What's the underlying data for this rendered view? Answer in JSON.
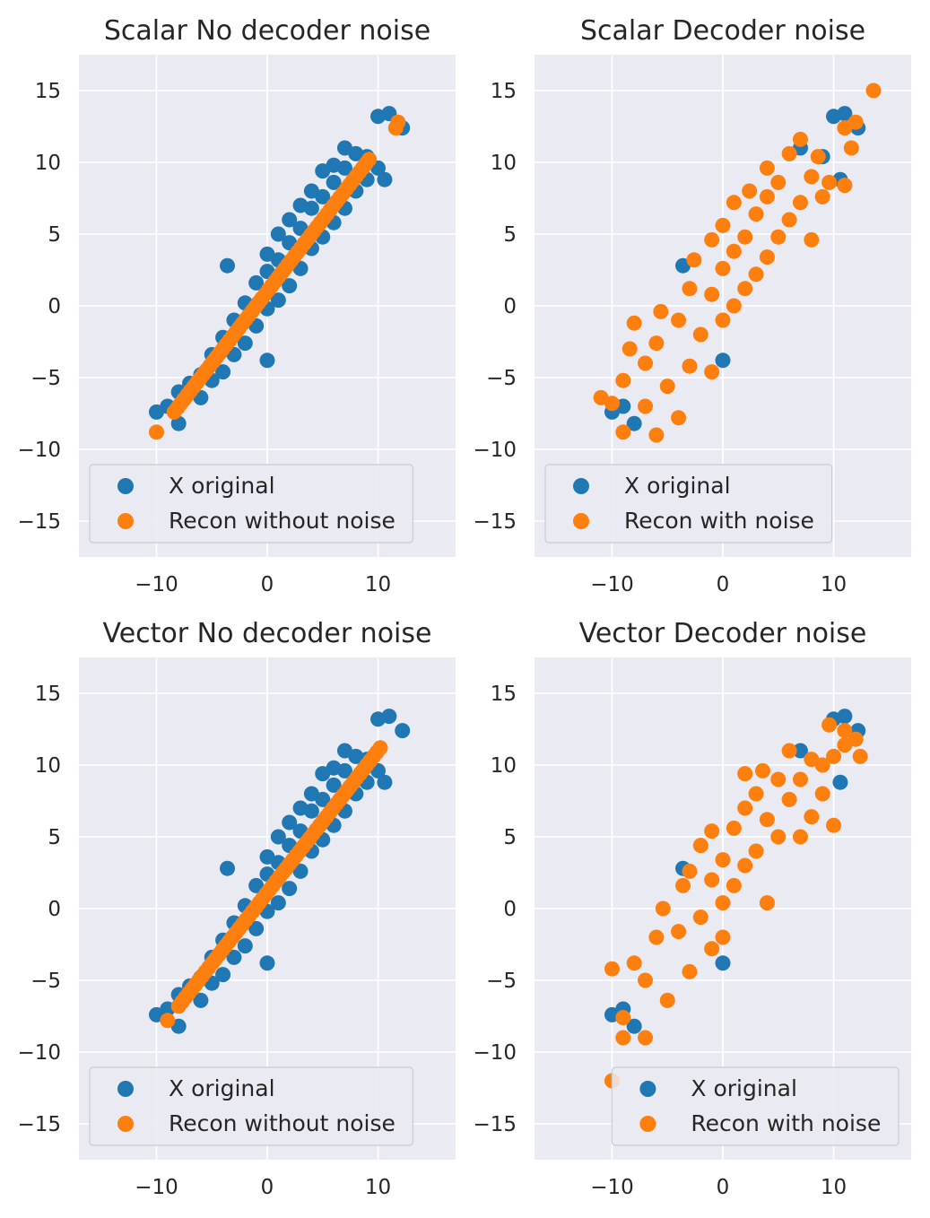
{
  "colors": {
    "x_original": "#1f77b4",
    "recon": "#ff7f0e",
    "panel_bg": "#eaeaf2"
  },
  "chart_data": [
    {
      "type": "scatter",
      "title": "Scalar No decoder noise",
      "xlim": [
        -17,
        17
      ],
      "ylim": [
        -17.5,
        17.5
      ],
      "xticks": [
        -10,
        0,
        10
      ],
      "yticks": [
        -15,
        -10,
        -5,
        0,
        5,
        10,
        15
      ],
      "xtick_labels": [
        "−10",
        "0",
        "10"
      ],
      "ytick_labels": [
        "−15",
        "−10",
        "−5",
        "0",
        "5",
        "10",
        "15"
      ],
      "grid": true,
      "legend_position": "lower-left",
      "series": [
        {
          "name": "X original",
          "color": "#1f77b4",
          "approx_sample": true,
          "points": [
            [
              -10,
              -7.4
            ],
            [
              -9,
              -7
            ],
            [
              -8,
              -8.2
            ],
            [
              -8,
              -6
            ],
            [
              -7,
              -5.4
            ],
            [
              -6,
              -6.4
            ],
            [
              -6,
              -4.8
            ],
            [
              -5,
              -5.2
            ],
            [
              -5,
              -3.4
            ],
            [
              -4,
              -4.6
            ],
            [
              -4,
              -2.2
            ],
            [
              -3.6,
              2.8
            ],
            [
              -3,
              -3.4
            ],
            [
              -3,
              -1
            ],
            [
              -2,
              -2.6
            ],
            [
              -2,
              0.2
            ],
            [
              -1,
              -1.4
            ],
            [
              -1,
              1.6
            ],
            [
              0,
              -0.2
            ],
            [
              0,
              -3.8
            ],
            [
              0,
              2.4
            ],
            [
              0,
              3.6
            ],
            [
              1,
              0.4
            ],
            [
              1,
              3.2
            ],
            [
              1,
              5
            ],
            [
              2,
              1.4
            ],
            [
              2,
              4.4
            ],
            [
              2,
              6
            ],
            [
              3,
              2.6
            ],
            [
              3,
              5.4
            ],
            [
              3,
              7
            ],
            [
              4,
              4
            ],
            [
              4,
              6.8
            ],
            [
              4,
              8
            ],
            [
              5,
              4.8
            ],
            [
              5,
              7.6
            ],
            [
              5,
              9.4
            ],
            [
              6,
              5.8
            ],
            [
              6,
              8.6
            ],
            [
              6,
              9.8
            ],
            [
              7,
              6.8
            ],
            [
              7,
              9.6
            ],
            [
              7,
              11
            ],
            [
              8,
              8
            ],
            [
              8,
              10.6
            ],
            [
              9,
              8.8
            ],
            [
              9,
              10.4
            ],
            [
              10,
              9.6
            ],
            [
              10.6,
              8.8
            ],
            [
              10,
              13.2
            ],
            [
              11,
              13.4
            ],
            [
              12.2,
              12.4
            ]
          ]
        },
        {
          "name": "Recon without noise",
          "color": "#ff7f0e",
          "line_from": [
            -8.4,
            -7.4
          ],
          "line_to": [
            9.2,
            10.2
          ],
          "points": [
            [
              -10,
              -8.8
            ],
            [
              11.6,
              12.4
            ],
            [
              11.8,
              12.8
            ]
          ]
        }
      ]
    },
    {
      "type": "scatter",
      "title": "Scalar Decoder noise",
      "xlim": [
        -17,
        17
      ],
      "ylim": [
        -17.5,
        17.5
      ],
      "xticks": [
        -10,
        0,
        10
      ],
      "yticks": [
        -15,
        -10,
        -5,
        0,
        5,
        10,
        15
      ],
      "xtick_labels": [
        "−10",
        "0",
        "10"
      ],
      "ytick_labels": [
        "−15",
        "−10",
        "−5",
        "0",
        "5",
        "10",
        "15"
      ],
      "grid": true,
      "legend_position": "lower-left",
      "series": [
        {
          "name": "X original",
          "color": "#1f77b4",
          "approx_sample": true,
          "points": [
            [
              -10,
              -7.4
            ],
            [
              -9,
              -7
            ],
            [
              -8,
              -8.2
            ],
            [
              -3.6,
              2.8
            ],
            [
              0,
              -3.8
            ],
            [
              10,
              13.2
            ],
            [
              11,
              13.4
            ],
            [
              12.2,
              12.4
            ],
            [
              10.6,
              8.8
            ],
            [
              7,
              11
            ],
            [
              9,
              10.4
            ]
          ]
        },
        {
          "name": "Recon with noise",
          "color": "#ff7f0e",
          "approx_sample": true,
          "points": [
            [
              -11,
              -6.4
            ],
            [
              -10,
              -6.8
            ],
            [
              -9,
              -8.8
            ],
            [
              -9,
              -5.2
            ],
            [
              -8.4,
              -3
            ],
            [
              -8,
              -1.2
            ],
            [
              -7,
              -7
            ],
            [
              -7,
              -4
            ],
            [
              -6,
              -9
            ],
            [
              -6,
              -2.6
            ],
            [
              -5.6,
              -0.4
            ],
            [
              -5,
              -5.6
            ],
            [
              -4,
              -7.8
            ],
            [
              -4,
              -1
            ],
            [
              -3,
              -4.2
            ],
            [
              -3,
              1.2
            ],
            [
              -2.6,
              3.2
            ],
            [
              -2,
              -2
            ],
            [
              -1,
              -4.6
            ],
            [
              -1,
              0.8
            ],
            [
              -1,
              4.6
            ],
            [
              0,
              -1
            ],
            [
              0,
              2.6
            ],
            [
              0,
              5.6
            ],
            [
              1,
              0
            ],
            [
              1,
              3.8
            ],
            [
              1,
              7.2
            ],
            [
              2,
              1.2
            ],
            [
              2,
              4.8
            ],
            [
              2.4,
              8
            ],
            [
              3,
              2.2
            ],
            [
              3,
              6.4
            ],
            [
              4,
              3.4
            ],
            [
              4,
              7.6
            ],
            [
              4,
              9.6
            ],
            [
              5,
              4.8
            ],
            [
              5,
              8.6
            ],
            [
              6,
              6
            ],
            [
              6,
              10.6
            ],
            [
              7,
              7.2
            ],
            [
              7,
              11.6
            ],
            [
              8,
              4.6
            ],
            [
              8,
              9
            ],
            [
              8.6,
              10.4
            ],
            [
              9,
              7.6
            ],
            [
              9.6,
              8.6
            ],
            [
              11,
              12.4
            ],
            [
              11.6,
              11
            ],
            [
              12,
              12.8
            ],
            [
              11,
              8.4
            ],
            [
              13.6,
              15
            ]
          ]
        }
      ]
    },
    {
      "type": "scatter",
      "title": "Vector No decoder noise",
      "xlim": [
        -17,
        17
      ],
      "ylim": [
        -17.5,
        17.5
      ],
      "xticks": [
        -10,
        0,
        10
      ],
      "yticks": [
        -15,
        -10,
        -5,
        0,
        5,
        10,
        15
      ],
      "xtick_labels": [
        "−10",
        "0",
        "10"
      ],
      "ytick_labels": [
        "−15",
        "−10",
        "−5",
        "0",
        "5",
        "10",
        "15"
      ],
      "grid": true,
      "legend_position": "lower-left",
      "series": [
        {
          "name": "X original",
          "color": "#1f77b4",
          "approx_sample": true,
          "points": [
            [
              -10,
              -7.4
            ],
            [
              -9,
              -7
            ],
            [
              -8,
              -8.2
            ],
            [
              -8,
              -6
            ],
            [
              -7,
              -5.4
            ],
            [
              -6,
              -6.4
            ],
            [
              -6,
              -4.8
            ],
            [
              -5,
              -5.2
            ],
            [
              -5,
              -3.4
            ],
            [
              -4,
              -4.6
            ],
            [
              -4,
              -2.2
            ],
            [
              -3.6,
              2.8
            ],
            [
              -3,
              -3.4
            ],
            [
              -3,
              -1
            ],
            [
              -2,
              -2.6
            ],
            [
              -2,
              0.2
            ],
            [
              -1,
              -1.4
            ],
            [
              -1,
              1.6
            ],
            [
              0,
              -0.2
            ],
            [
              0,
              -3.8
            ],
            [
              0,
              2.4
            ],
            [
              0,
              3.6
            ],
            [
              1,
              0.4
            ],
            [
              1,
              3.2
            ],
            [
              1,
              5
            ],
            [
              2,
              1.4
            ],
            [
              2,
              4.4
            ],
            [
              2,
              6
            ],
            [
              3,
              2.6
            ],
            [
              3,
              5.4
            ],
            [
              3,
              7
            ],
            [
              4,
              4
            ],
            [
              4,
              6.8
            ],
            [
              4,
              8
            ],
            [
              5,
              4.8
            ],
            [
              5,
              7.6
            ],
            [
              5,
              9.4
            ],
            [
              6,
              5.8
            ],
            [
              6,
              8.6
            ],
            [
              6,
              9.8
            ],
            [
              7,
              6.8
            ],
            [
              7,
              9.6
            ],
            [
              7,
              11
            ],
            [
              8,
              8
            ],
            [
              8,
              10.6
            ],
            [
              9,
              8.8
            ],
            [
              9,
              10.4
            ],
            [
              10,
              9.6
            ],
            [
              10.6,
              8.8
            ],
            [
              10,
              13.2
            ],
            [
              11,
              13.4
            ],
            [
              12.2,
              12.4
            ]
          ]
        },
        {
          "name": "Recon without noise",
          "color": "#ff7f0e",
          "line_from": [
            -8,
            -6.8
          ],
          "line_to": [
            10.2,
            11.2
          ],
          "points": [
            [
              -9,
              -7.8
            ]
          ]
        }
      ]
    },
    {
      "type": "scatter",
      "title": "Vector Decoder noise",
      "xlim": [
        -17,
        17
      ],
      "ylim": [
        -17.5,
        17.5
      ],
      "xticks": [
        -10,
        0,
        10
      ],
      "yticks": [
        -15,
        -10,
        -5,
        0,
        5,
        10,
        15
      ],
      "xtick_labels": [
        "−10",
        "0",
        "10"
      ],
      "ytick_labels": [
        "−15",
        "−10",
        "−5",
        "0",
        "5",
        "10",
        "15"
      ],
      "grid": true,
      "legend_position": "lower-right",
      "series": [
        {
          "name": "X original",
          "color": "#1f77b4",
          "approx_sample": true,
          "points": [
            [
              -10,
              -7.4
            ],
            [
              -9,
              -7
            ],
            [
              -8,
              -8.2
            ],
            [
              -3.6,
              2.8
            ],
            [
              0,
              -3.8
            ],
            [
              10,
              13.2
            ],
            [
              11,
              13.4
            ],
            [
              12.2,
              12.4
            ],
            [
              10.6,
              8.8
            ],
            [
              7,
              11
            ]
          ]
        },
        {
          "name": "Recon with noise",
          "color": "#ff7f0e",
          "approx_sample": true,
          "points": [
            [
              -10,
              -12
            ],
            [
              -10,
              -4.2
            ],
            [
              -9,
              -9
            ],
            [
              -9,
              -7.6
            ],
            [
              -8,
              -3.8
            ],
            [
              -7,
              -9
            ],
            [
              -7,
              -5
            ],
            [
              -6,
              -2
            ],
            [
              -5.4,
              0
            ],
            [
              -5,
              -6.4
            ],
            [
              -4,
              -1.6
            ],
            [
              -3.6,
              1.6
            ],
            [
              -3,
              -4.4
            ],
            [
              -3,
              2.6
            ],
            [
              -2,
              -0.6
            ],
            [
              -2,
              4.4
            ],
            [
              -1,
              -2.8
            ],
            [
              -1,
              2
            ],
            [
              -1,
              5.4
            ],
            [
              0,
              0.4
            ],
            [
              0,
              3.4
            ],
            [
              0,
              -2
            ],
            [
              1,
              1.6
            ],
            [
              1,
              5.6
            ],
            [
              2,
              3
            ],
            [
              2,
              7
            ],
            [
              2,
              9.4
            ],
            [
              3,
              4
            ],
            [
              3,
              8
            ],
            [
              3.6,
              9.6
            ],
            [
              4,
              0.4
            ],
            [
              4,
              6.2
            ],
            [
              5,
              5
            ],
            [
              5,
              9
            ],
            [
              6,
              7.6
            ],
            [
              6,
              11
            ],
            [
              7,
              5
            ],
            [
              7,
              9
            ],
            [
              8,
              6.4
            ],
            [
              8,
              10.4
            ],
            [
              9,
              8
            ],
            [
              9,
              10
            ],
            [
              10,
              10.6
            ],
            [
              11,
              11.4
            ],
            [
              11,
              12.4
            ],
            [
              12,
              11.8
            ],
            [
              12.4,
              10.6
            ],
            [
              10,
              5.8
            ],
            [
              9.6,
              12.8
            ]
          ]
        }
      ]
    }
  ]
}
